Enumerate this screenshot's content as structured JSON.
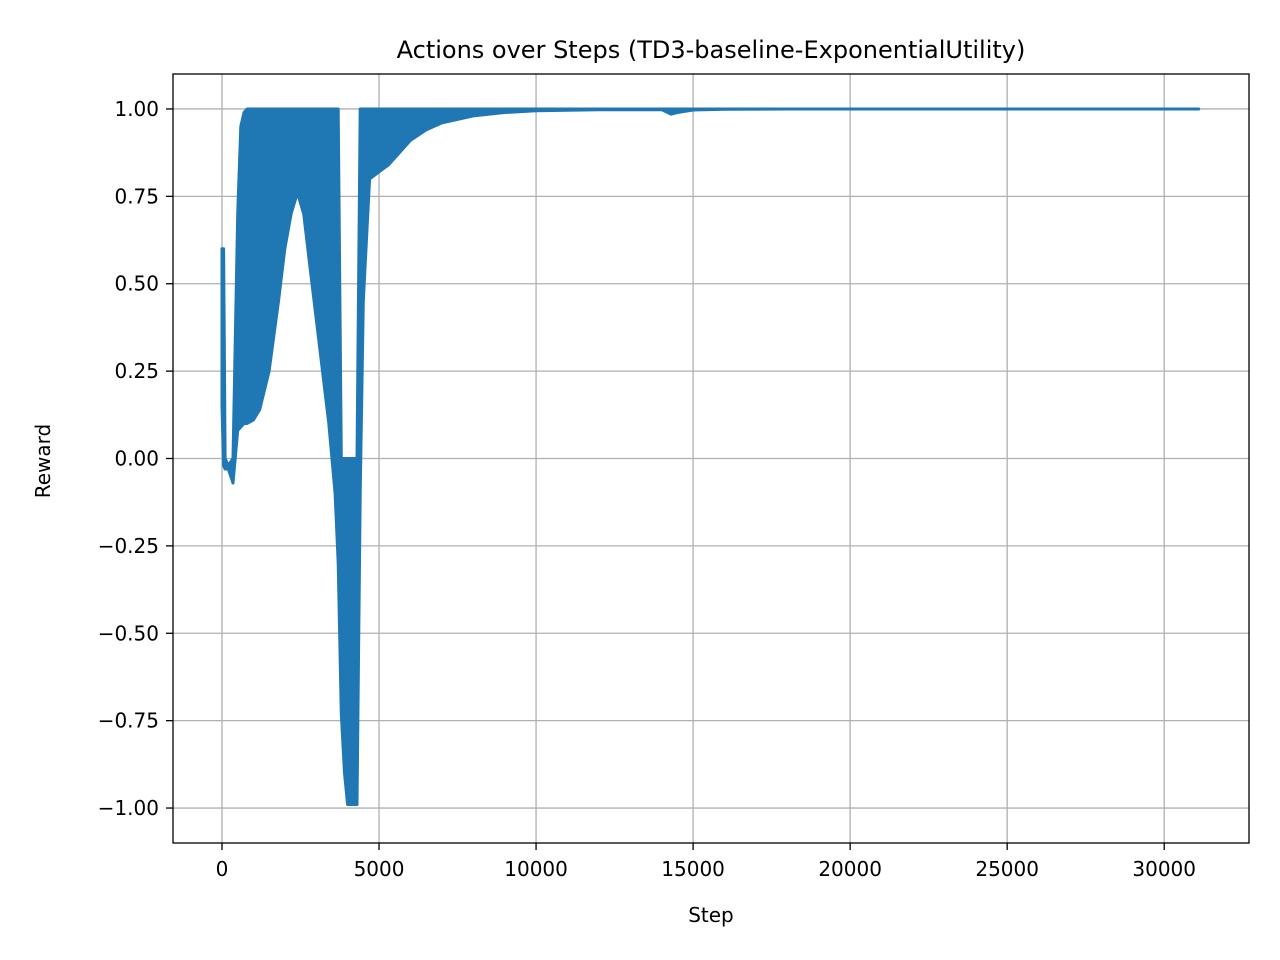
{
  "chart_data": {
    "type": "line",
    "title": "Actions over Steps (TD3-baseline-ExponentialUtility)",
    "xlabel": "Step",
    "ylabel": "Reward",
    "xlim": [
      -1560,
      32700
    ],
    "ylim": [
      -1.1,
      1.1
    ],
    "xticks": [
      0,
      5000,
      10000,
      15000,
      20000,
      25000,
      30000
    ],
    "xtick_labels": [
      "0",
      "5000",
      "10000",
      "15000",
      "20000",
      "25000",
      "30000"
    ],
    "yticks": [
      1.0,
      0.75,
      0.5,
      0.25,
      0.0,
      -0.25,
      -0.5,
      -0.75,
      -1.0
    ],
    "ytick_labels": [
      "1.00",
      "0.75",
      "0.50",
      "0.25",
      "0.00",
      "−0.25",
      "−0.50",
      "−0.75",
      "−1.00"
    ],
    "grid": true,
    "series": [
      {
        "color": "#1f77b4",
        "band": {
          "x": [
            0,
            50,
            100,
            200,
            350,
            500,
            600,
            700,
            800,
            1000,
            1200,
            1500,
            1800,
            2000,
            2200,
            2400,
            2600,
            2800,
            3000,
            3200,
            3400,
            3600,
            3700,
            3800,
            3900,
            4000,
            4100,
            4200,
            4300,
            4400,
            4500,
            4700,
            5000,
            5300,
            5600,
            6000,
            6500,
            7000,
            7500,
            8000,
            9000,
            10000,
            12000,
            14000,
            14300,
            14500,
            15000,
            16000,
            18000,
            20000,
            25000,
            31100
          ],
          "upper": [
            0.6,
            0.6,
            0.0,
            -0.02,
            0.0,
            0.7,
            0.95,
            0.99,
            1.0,
            1.0,
            1.0,
            1.0,
            1.0,
            1.0,
            1.0,
            1.0,
            1.0,
            1.0,
            1.0,
            1.0,
            1.0,
            1.0,
            1.0,
            0.0,
            0.0,
            0.0,
            0.0,
            0.0,
            0.0,
            1.0,
            1.0,
            1.0,
            1.0,
            1.0,
            1.0,
            1.0,
            1.0,
            1.0,
            1.0,
            1.0,
            1.0,
            1.0,
            1.0,
            1.0,
            1.0,
            1.0,
            1.0,
            1.0,
            1.0,
            1.0,
            1.0,
            1.0
          ],
          "lower": [
            0.15,
            -0.02,
            -0.03,
            -0.03,
            -0.07,
            0.08,
            0.09,
            0.1,
            0.1,
            0.11,
            0.14,
            0.25,
            0.45,
            0.6,
            0.7,
            0.76,
            0.7,
            0.55,
            0.4,
            0.25,
            0.1,
            -0.1,
            -0.3,
            -0.73,
            -0.9,
            -0.99,
            -0.99,
            -0.99,
            -0.99,
            -0.1,
            0.45,
            0.8,
            0.82,
            0.84,
            0.87,
            0.91,
            0.94,
            0.96,
            0.97,
            0.98,
            0.99,
            0.995,
            0.998,
            0.998,
            0.985,
            0.99,
            0.997,
            0.999,
            1.0,
            1.0,
            1.0,
            1.0
          ]
        }
      }
    ]
  }
}
